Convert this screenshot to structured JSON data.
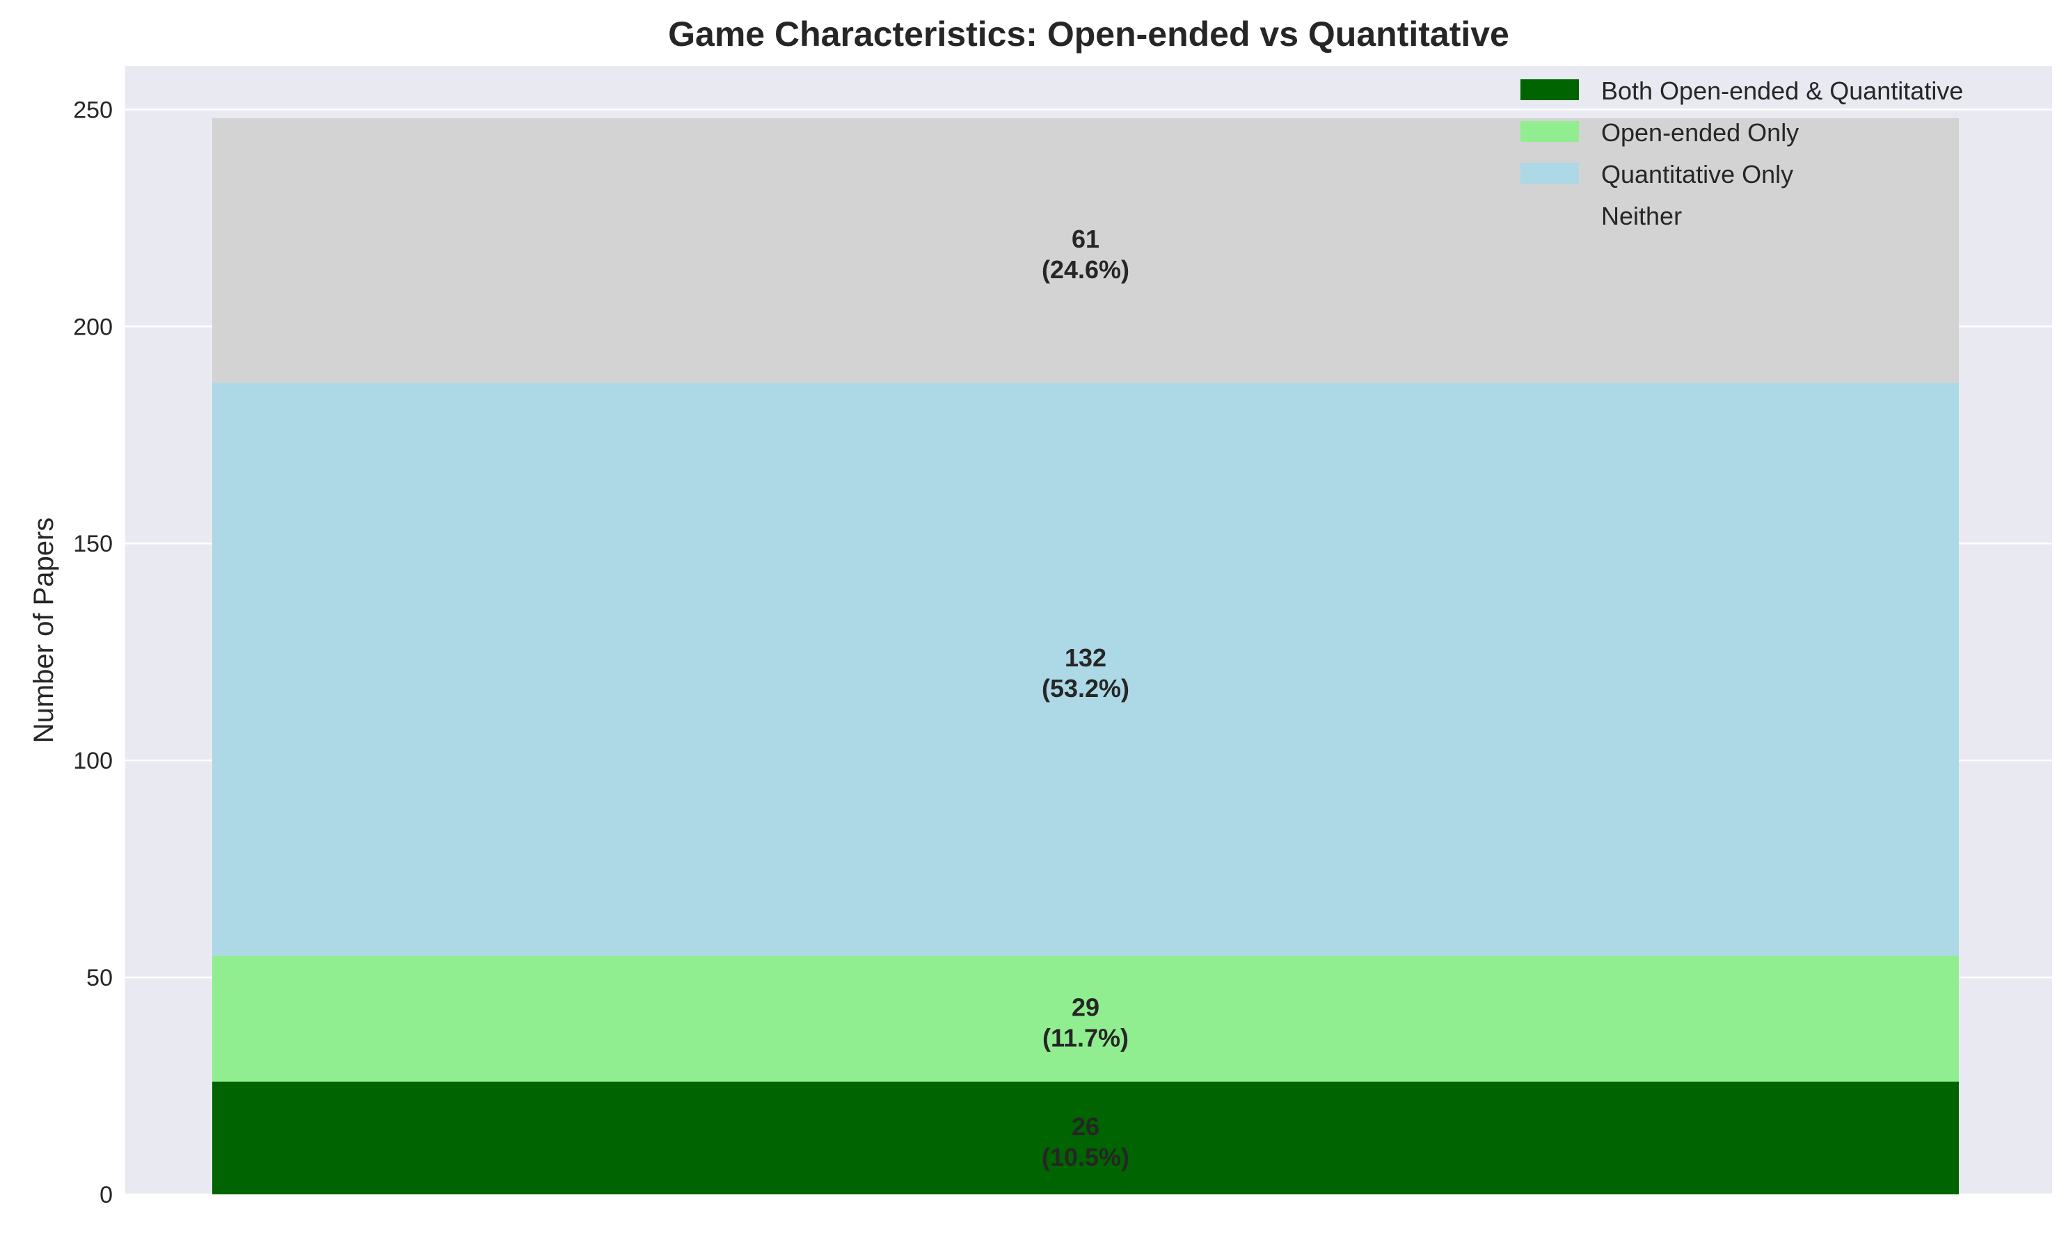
{
  "chart_data": {
    "type": "bar",
    "stacked": true,
    "title": "Game Characteristics: Open-ended vs Quantitative",
    "xlabel": "",
    "ylabel": "Number of Papers",
    "ylim": [
      0,
      260
    ],
    "yticks": [
      0,
      50,
      100,
      150,
      200,
      250
    ],
    "grid": true,
    "legend_position": "top-right",
    "background_color": "#e9e9f1",
    "series": [
      {
        "name": "Both Open-ended & Quantitative",
        "value": 26,
        "label_value": "26",
        "label_pct": "(10.5%)",
        "color": "#006400"
      },
      {
        "name": "Open-ended Only",
        "value": 29,
        "label_value": "29",
        "label_pct": "(11.7%)",
        "color": "#90ee90"
      },
      {
        "name": "Quantitative Only",
        "value": 132,
        "label_value": "132",
        "label_pct": "(53.2%)",
        "color": "#add8e6"
      },
      {
        "name": "Neither",
        "value": 61,
        "label_value": "61",
        "label_pct": "(24.6%)",
        "color": "#d3d3d3"
      }
    ]
  }
}
